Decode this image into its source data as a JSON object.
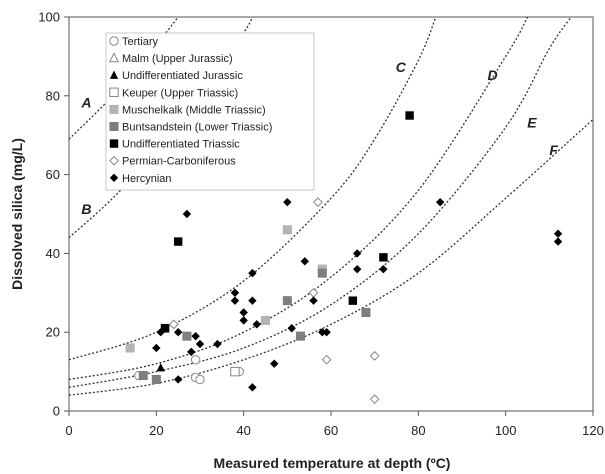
{
  "chart_data": {
    "type": "scatter",
    "title": "",
    "xlabel": "Measured temperature at depth (ºC)",
    "ylabel": "Dissolved silica (mg/L)",
    "xlim": [
      0,
      120
    ],
    "ylim": [
      0,
      100
    ],
    "xticks": [
      0,
      20,
      40,
      60,
      80,
      100,
      120
    ],
    "yticks": [
      0,
      20,
      40,
      60,
      80,
      100
    ],
    "grid": false,
    "legend_position": "top-left",
    "curves": [
      {
        "name": "A",
        "label_at": [
          4,
          77
        ],
        "points": [
          [
            0,
            69
          ],
          [
            10,
            80
          ],
          [
            20,
            93
          ],
          [
            25,
            100
          ]
        ]
      },
      {
        "name": "B",
        "label_at": [
          4,
          50
        ],
        "points": [
          [
            0,
            44
          ],
          [
            10,
            54
          ],
          [
            20,
            66
          ],
          [
            30,
            80
          ],
          [
            40,
            96
          ],
          [
            42,
            100
          ]
        ]
      },
      {
        "name": "C",
        "label_at": [
          76,
          86
        ],
        "points": [
          [
            0,
            13
          ],
          [
            20,
            20
          ],
          [
            40,
            33
          ],
          [
            60,
            54
          ],
          [
            70,
            69
          ],
          [
            80,
            89
          ],
          [
            84,
            100
          ]
        ]
      },
      {
        "name": "D",
        "label_at": [
          97,
          84
        ],
        "points": [
          [
            0,
            8
          ],
          [
            20,
            12
          ],
          [
            40,
            20
          ],
          [
            60,
            34
          ],
          [
            80,
            56
          ],
          [
            100,
            90
          ],
          [
            105,
            100
          ]
        ]
      },
      {
        "name": "E",
        "label_at": [
          106,
          72
        ],
        "points": [
          [
            0,
            6
          ],
          [
            20,
            10
          ],
          [
            40,
            16
          ],
          [
            60,
            27
          ],
          [
            80,
            45
          ],
          [
            100,
            72
          ],
          [
            110,
            92
          ],
          [
            115,
            100
          ]
        ]
      },
      {
        "name": "F",
        "label_at": [
          111,
          65
        ],
        "points": [
          [
            0,
            4
          ],
          [
            20,
            7
          ],
          [
            40,
            13
          ],
          [
            60,
            22
          ],
          [
            80,
            35
          ],
          [
            100,
            54
          ],
          [
            120,
            74
          ]
        ]
      }
    ],
    "series": [
      {
        "name": "Tertiary",
        "marker": "circle-open",
        "color": "#999999",
        "points": [
          [
            16,
            9
          ],
          [
            29,
            13
          ],
          [
            29,
            8.5
          ],
          [
            30,
            8
          ],
          [
            39,
            10
          ]
        ]
      },
      {
        "name": "Malm (Upper Jurassic)",
        "marker": "triangle-open",
        "color": "#999999",
        "points": []
      },
      {
        "name": "Undifferentiated Jurassic",
        "marker": "triangle-filled",
        "color": "#000000",
        "points": [
          [
            21,
            11
          ]
        ]
      },
      {
        "name": "Keuper (Upper Triassic)",
        "marker": "square-open",
        "color": "#999999",
        "points": [
          [
            38,
            10
          ]
        ]
      },
      {
        "name": "Muschelkalk (Middle Triassic)",
        "marker": "square-lightgray",
        "color": "#b4b4b4",
        "points": [
          [
            14,
            16
          ],
          [
            22,
            21
          ],
          [
            45,
            23
          ],
          [
            50,
            46
          ],
          [
            58,
            36
          ]
        ]
      },
      {
        "name": "Buntsandstein (Lower Triassic)",
        "marker": "square-gray",
        "color": "#7f7f7f",
        "points": [
          [
            17,
            9
          ],
          [
            20,
            8
          ],
          [
            27,
            19
          ],
          [
            50,
            28
          ],
          [
            53,
            19
          ],
          [
            58,
            35
          ],
          [
            68,
            25
          ]
        ]
      },
      {
        "name": "Undifferentiated Triassic",
        "marker": "square-black",
        "color": "#000000",
        "points": [
          [
            22,
            21
          ],
          [
            25,
            43
          ],
          [
            65,
            28
          ],
          [
            72,
            39
          ],
          [
            78,
            75
          ]
        ]
      },
      {
        "name": "Permian-Carboniferous",
        "marker": "diamond-open",
        "color": "#999999",
        "points": [
          [
            24,
            22
          ],
          [
            56,
            30
          ],
          [
            57,
            53
          ],
          [
            59,
            13
          ],
          [
            70,
            14
          ],
          [
            70,
            3
          ]
        ]
      },
      {
        "name": "Hercynian",
        "marker": "diamond-filled",
        "color": "#000000",
        "points": [
          [
            20,
            16
          ],
          [
            21,
            20
          ],
          [
            25,
            8
          ],
          [
            25,
            20
          ],
          [
            27,
            50
          ],
          [
            28,
            15
          ],
          [
            29,
            19
          ],
          [
            30,
            17
          ],
          [
            34,
            17
          ],
          [
            38,
            30
          ],
          [
            38,
            28
          ],
          [
            40,
            23
          ],
          [
            40,
            25
          ],
          [
            42,
            6
          ],
          [
            42,
            28
          ],
          [
            42,
            35
          ],
          [
            43,
            22
          ],
          [
            47,
            12
          ],
          [
            50,
            53
          ],
          [
            51,
            21
          ],
          [
            54,
            38
          ],
          [
            56,
            28
          ],
          [
            58,
            20
          ],
          [
            59,
            20
          ],
          [
            66,
            40
          ],
          [
            66,
            36
          ],
          [
            72,
            36
          ],
          [
            85,
            53
          ],
          [
            112,
            45
          ],
          [
            112,
            43
          ]
        ]
      }
    ]
  }
}
